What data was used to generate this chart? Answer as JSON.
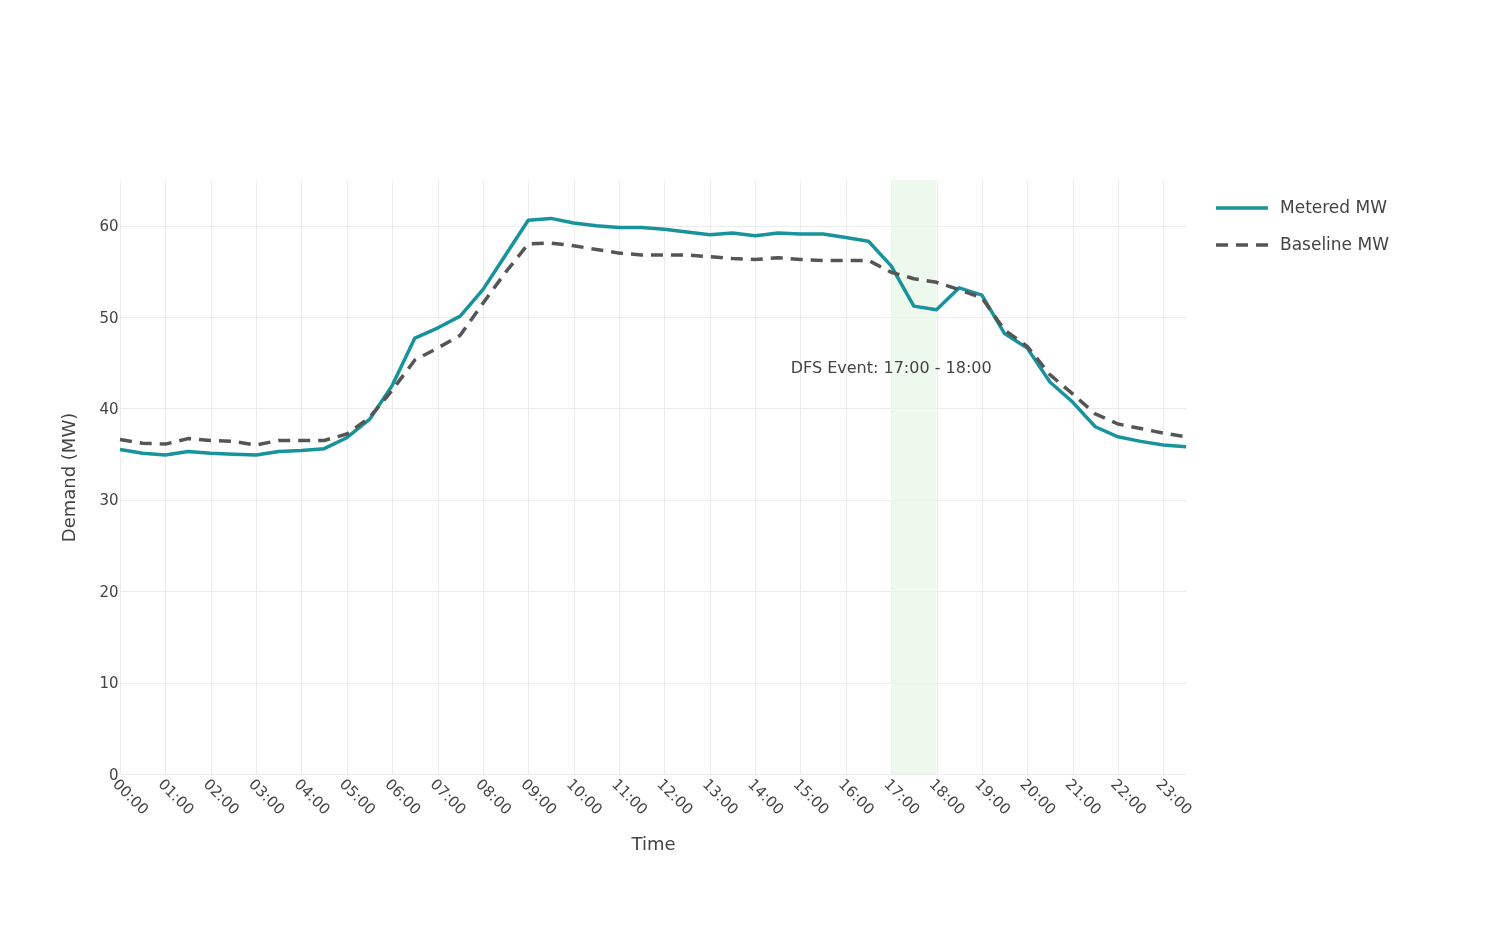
{
  "chart_data": {
    "type": "line",
    "xlabel": "Time",
    "ylabel": "Demand (MW)",
    "x": [
      0,
      0.5,
      1,
      1.5,
      2,
      2.5,
      3,
      3.5,
      4,
      4.5,
      5,
      5.5,
      6,
      6.5,
      7,
      7.5,
      8,
      8.5,
      9,
      9.5,
      10,
      10.5,
      11,
      11.5,
      12,
      12.5,
      13,
      13.5,
      14,
      14.5,
      15,
      15.5,
      16,
      16.5,
      17,
      17.5,
      18,
      18.5,
      19,
      19.5,
      20,
      20.5,
      21,
      21.5,
      22,
      22.5,
      23,
      23.5
    ],
    "series": [
      {
        "name": "Metered MW",
        "color": "#17939c",
        "line_style": "solid",
        "values": [
          35.5,
          35.1,
          34.9,
          35.3,
          35.1,
          35.0,
          34.9,
          35.3,
          35.4,
          35.6,
          36.8,
          38.8,
          42.5,
          47.7,
          48.8,
          50.1,
          53.0,
          56.8,
          60.6,
          60.8,
          60.3,
          60.0,
          59.8,
          59.8,
          59.6,
          59.3,
          59.0,
          59.2,
          58.9,
          59.2,
          59.1,
          59.1,
          58.7,
          58.3,
          55.6,
          51.2,
          50.8,
          53.2,
          52.4,
          48.2,
          46.6,
          42.9,
          40.7,
          38.0,
          36.9,
          36.4,
          36.0,
          35.8
        ]
      },
      {
        "name": "Baseline MW",
        "color": "#555555",
        "line_style": "dashed",
        "values": [
          36.6,
          36.2,
          36.1,
          36.7,
          36.5,
          36.4,
          36.0,
          36.5,
          36.5,
          36.5,
          37.2,
          39.0,
          42.0,
          45.3,
          46.6,
          48.0,
          51.5,
          54.9,
          58.0,
          58.1,
          57.8,
          57.4,
          57.0,
          56.8,
          56.8,
          56.8,
          56.6,
          56.4,
          56.3,
          56.5,
          56.3,
          56.2,
          56.2,
          56.2,
          54.9,
          54.2,
          53.8,
          53.0,
          52.1,
          48.6,
          46.8,
          43.7,
          41.6,
          39.4,
          38.3,
          37.8,
          37.3,
          36.9
        ]
      }
    ],
    "xlim": [
      0,
      23.5
    ],
    "xticks": [
      {
        "value": 0,
        "label": "00:00"
      },
      {
        "value": 1,
        "label": "01:00"
      },
      {
        "value": 2,
        "label": "02:00"
      },
      {
        "value": 3,
        "label": "03:00"
      },
      {
        "value": 4,
        "label": "04:00"
      },
      {
        "value": 5,
        "label": "05:00"
      },
      {
        "value": 6,
        "label": "06:00"
      },
      {
        "value": 7,
        "label": "07:00"
      },
      {
        "value": 8,
        "label": "08:00"
      },
      {
        "value": 9,
        "label": "09:00"
      },
      {
        "value": 10,
        "label": "10:00"
      },
      {
        "value": 11,
        "label": "11:00"
      },
      {
        "value": 12,
        "label": "12:00"
      },
      {
        "value": 13,
        "label": "13:00"
      },
      {
        "value": 14,
        "label": "14:00"
      },
      {
        "value": 15,
        "label": "15:00"
      },
      {
        "value": 16,
        "label": "16:00"
      },
      {
        "value": 17,
        "label": "17:00"
      },
      {
        "value": 18,
        "label": "18:00"
      },
      {
        "value": 19,
        "label": "19:00"
      },
      {
        "value": 20,
        "label": "20:00"
      },
      {
        "value": 21,
        "label": "21:00"
      },
      {
        "value": 22,
        "label": "22:00"
      },
      {
        "value": 23,
        "label": "23:00"
      }
    ],
    "ylim": [
      0,
      65
    ],
    "yticks": [
      0,
      10,
      20,
      30,
      40,
      50,
      60
    ],
    "bands": [
      {
        "axis": "x",
        "from": 17,
        "to": 18,
        "label": "DFS Event: 17:00 - 18:00",
        "color": "#eaf7ea"
      }
    ],
    "grid": true,
    "legend": "top right"
  }
}
